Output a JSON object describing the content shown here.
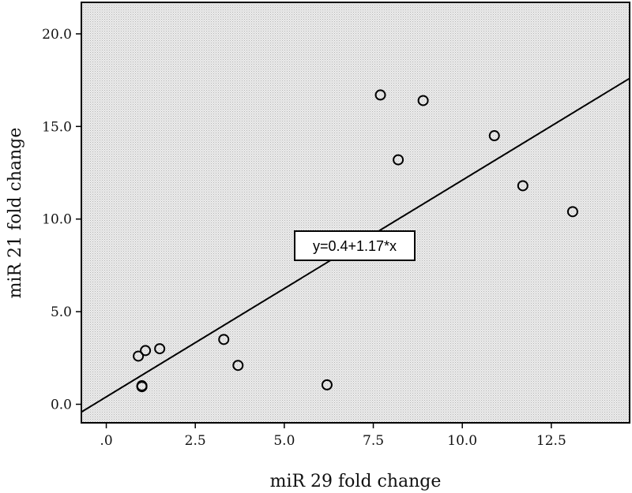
{
  "chart_data": {
    "type": "scatter",
    "xlabel": "miR 29 fold change",
    "ylabel": "miR 21 fold change",
    "xlim": [
      -0.7,
      14.7
    ],
    "ylim": [
      -1.0,
      21.7
    ],
    "x_ticks": [
      0,
      2.5,
      5.0,
      7.5,
      10.0,
      12.5
    ],
    "x_tick_labels": [
      ".0",
      "2.5",
      "5.0",
      "7.5",
      "10.0",
      "12.5"
    ],
    "y_ticks": [
      0,
      5.0,
      10.0,
      15.0,
      20.0
    ],
    "y_tick_labels": [
      "0.0",
      "5.0",
      "10.0",
      "15.0",
      "20.0"
    ],
    "points": [
      {
        "x": 0.9,
        "y": 2.6
      },
      {
        "x": 1.1,
        "y": 2.9
      },
      {
        "x": 1.5,
        "y": 3.0
      },
      {
        "x": 1.0,
        "y": 1.0
      },
      {
        "x": 1.0,
        "y": 0.95
      },
      {
        "x": 3.3,
        "y": 3.5
      },
      {
        "x": 3.7,
        "y": 2.1
      },
      {
        "x": 6.2,
        "y": 1.05
      },
      {
        "x": 7.7,
        "y": 16.7
      },
      {
        "x": 8.9,
        "y": 16.4
      },
      {
        "x": 8.2,
        "y": 13.2
      },
      {
        "x": 10.9,
        "y": 14.5
      },
      {
        "x": 11.7,
        "y": 11.8
      },
      {
        "x": 13.1,
        "y": 10.4
      }
    ],
    "fit_line": {
      "intercept": 0.4,
      "slope": 1.17
    },
    "annotation": "y=0.4+1.17*x",
    "grid": false,
    "legend": "none",
    "colors": {
      "plot_background": "#dcdcdc",
      "marker_stroke": "#000000",
      "line": "#000000"
    }
  }
}
